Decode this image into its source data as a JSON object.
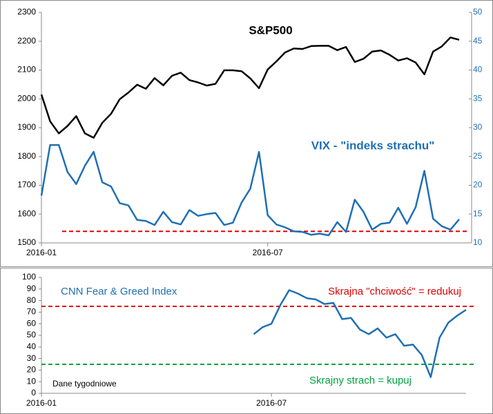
{
  "chart_data": [
    {
      "type": "line",
      "title": "S&P500",
      "annotation": "VIX - \"indeks strachu\"",
      "categories": [
        "2016-01",
        null,
        null,
        null,
        null,
        null,
        null,
        null,
        null,
        null,
        null,
        null,
        null,
        null,
        null,
        null,
        null,
        null,
        null,
        null,
        null,
        null,
        null,
        null,
        null,
        null,
        "2016-07",
        null,
        null,
        null,
        null,
        null,
        null,
        null,
        null,
        null,
        null,
        null,
        null,
        null,
        null,
        null,
        null,
        null,
        null,
        null,
        null,
        null,
        null
      ],
      "ylim": [
        1500,
        2300
      ],
      "yticks": [
        1500,
        1600,
        1700,
        1800,
        1900,
        2000,
        2100,
        2200,
        2300
      ],
      "y2lim": [
        10,
        50
      ],
      "y2ticks": [
        10,
        15,
        20,
        25,
        30,
        35,
        40,
        45,
        50
      ],
      "y2color": "#1f6fb4",
      "series": [
        {
          "name": "S&P500",
          "color": "#000000",
          "values": [
            2015,
            1922,
            1880,
            1906,
            1940,
            1880,
            1865,
            1917,
            1948,
            1999,
            2022,
            2049,
            2035,
            2072,
            2047,
            2080,
            2091,
            2065,
            2057,
            2046,
            2052,
            2099,
            2099,
            2096,
            2071,
            2037,
            2102,
            2130,
            2161,
            2175,
            2173,
            2183,
            2184,
            2184,
            2169,
            2180,
            2128,
            2139,
            2164,
            2168,
            2153,
            2133,
            2141,
            2126,
            2085,
            2164,
            2182,
            2213,
            2205
          ]
        },
        {
          "name": "VIX",
          "color": "#1f6fb4",
          "axis": "y2",
          "values": [
            18.2,
            27,
            27,
            22.3,
            20.2,
            23.4,
            25.8,
            20.5,
            19.8,
            16.9,
            16.5,
            14.0,
            13.8,
            13.1,
            15.4,
            13.6,
            13.2,
            15.7,
            14.7,
            15.0,
            15.2,
            13.1,
            13.5,
            17.0,
            19.4,
            25.8,
            14.8,
            13.2,
            12.7,
            12.0,
            11.9,
            11.4,
            11.6,
            11.3,
            13.6,
            11.9,
            17.5,
            15.4,
            12.3,
            13.3,
            13.5,
            16.1,
            13.3,
            16.2,
            22.5,
            14.2,
            12.9,
            12.3,
            14.1
          ]
        }
      ],
      "reference_lines": [
        {
          "value": 12,
          "axis": "y2",
          "color": "#e00000"
        }
      ]
    },
    {
      "type": "line",
      "title": "CNN Fear & Greed Index",
      "note": "Dane tygodniowe",
      "categories": [
        "2016-01",
        null,
        null,
        null,
        null,
        null,
        null,
        null,
        null,
        null,
        null,
        null,
        null,
        null,
        null,
        null,
        null,
        null,
        null,
        null,
        null,
        null,
        null,
        null,
        null,
        null,
        "2016-07",
        null,
        null,
        null,
        null,
        null,
        null,
        null,
        null,
        null,
        null,
        null,
        null,
        null,
        null,
        null,
        null,
        null,
        null,
        null,
        null,
        null,
        null
      ],
      "ylim": [
        0,
        100
      ],
      "yticks": [
        0,
        10,
        20,
        30,
        40,
        50,
        60,
        70,
        80,
        90,
        100
      ],
      "series": [
        {
          "name": "CNN Fear & Greed Index",
          "color": "#1f6fb4",
          "values": [
            null,
            null,
            null,
            null,
            null,
            null,
            null,
            null,
            null,
            null,
            null,
            null,
            null,
            null,
            null,
            null,
            null,
            null,
            null,
            null,
            null,
            null,
            null,
            null,
            51,
            57,
            60,
            76,
            89,
            86,
            82,
            81,
            77,
            78,
            64,
            65,
            55,
            51,
            56,
            48,
            51,
            41,
            42,
            33,
            14,
            48,
            61,
            67,
            72
          ]
        }
      ],
      "reference_lines": [
        {
          "value": 75,
          "color": "#e00000",
          "label": "Skrajna \"chciwość\" = redukuj"
        },
        {
          "value": 25,
          "color": "#00a040",
          "label": "Skrajny strach = kupuj"
        }
      ]
    }
  ]
}
